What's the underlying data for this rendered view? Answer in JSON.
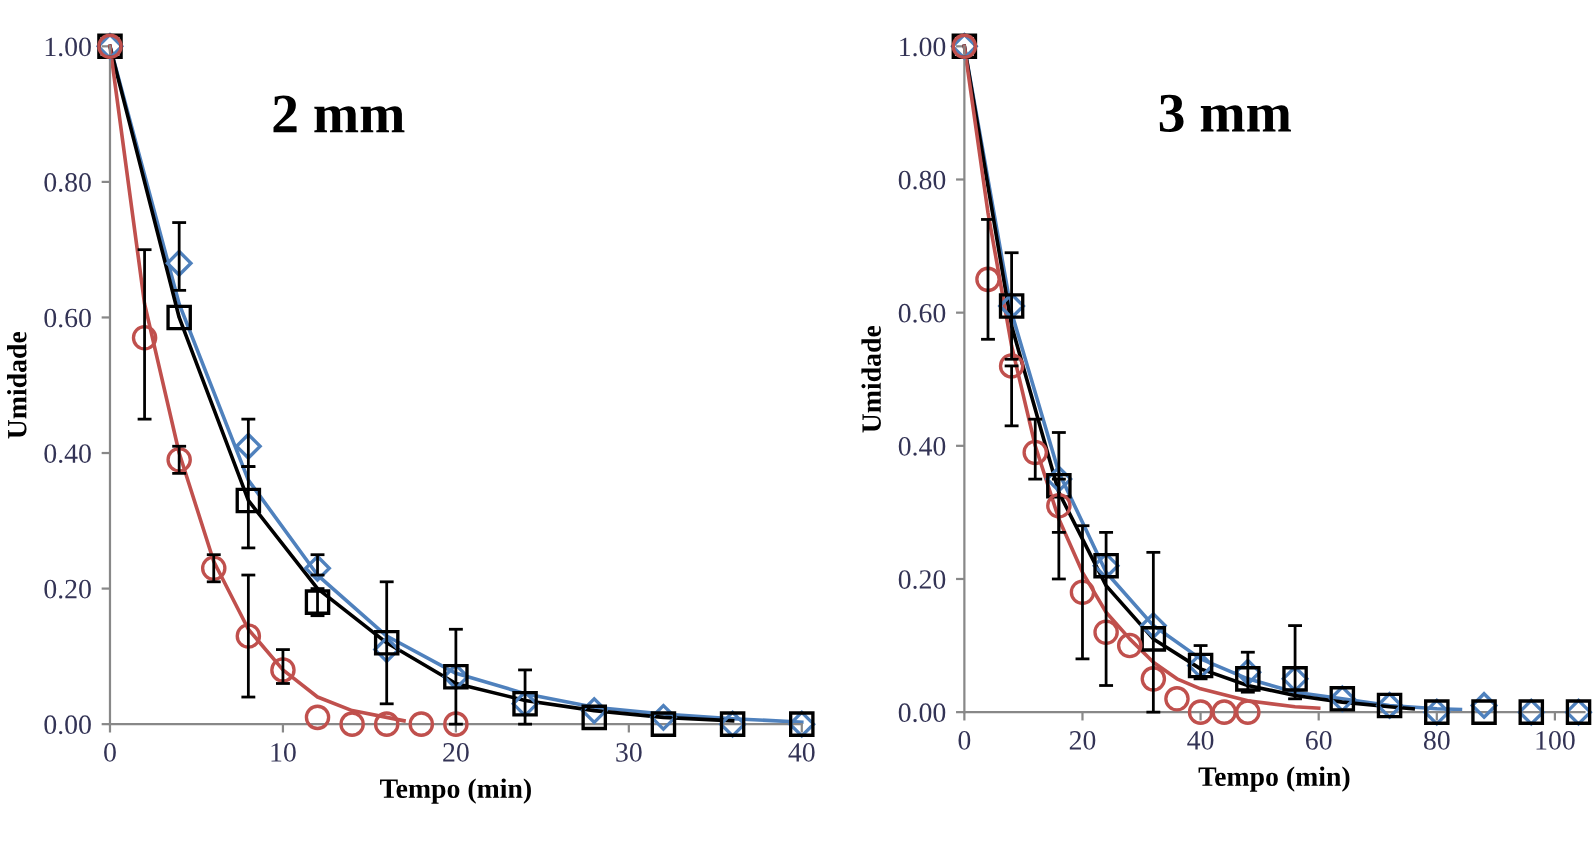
{
  "chart_data": [
    {
      "type": "scatter",
      "title": "2 mm",
      "xlabel": "Tempo (min)",
      "ylabel": "Umidade",
      "xlim": [
        0,
        40
      ],
      "xticks": [
        0,
        10,
        20,
        30,
        40
      ],
      "ylim": [
        0,
        1
      ],
      "yticks": [
        {
          "value": 0,
          "label": "0.00"
        },
        {
          "value": 0.2,
          "label": "0.20"
        },
        {
          "value": 0.4,
          "label": "0.40"
        },
        {
          "value": 0.6,
          "label": "0.60"
        },
        {
          "value": 0.8,
          "label": "0.80"
        },
        {
          "value": 1,
          "label": "1.00"
        }
      ],
      "grid": false,
      "legend": false,
      "series": [
        {
          "type": "line",
          "color": "#4f81bd",
          "marker": "none",
          "x": [
            0,
            4,
            8,
            12,
            16,
            20,
            24,
            28,
            32,
            36,
            40
          ],
          "values": [
            1.0,
            0.62,
            0.36,
            0.22,
            0.13,
            0.075,
            0.045,
            0.025,
            0.015,
            0.008,
            0.003
          ]
        },
        {
          "type": "line",
          "color": "#000000",
          "marker": "none",
          "x": [
            0,
            4,
            8,
            12,
            16,
            20,
            24,
            28,
            32,
            36
          ],
          "values": [
            1.0,
            0.6,
            0.33,
            0.2,
            0.12,
            0.06,
            0.035,
            0.02,
            0.01,
            0.005
          ]
        },
        {
          "type": "line",
          "color": "#c0504d",
          "marker": "none",
          "x": [
            0,
            2,
            4,
            6,
            8,
            10,
            12,
            14,
            16,
            17
          ],
          "values": [
            1.0,
            0.62,
            0.4,
            0.24,
            0.14,
            0.08,
            0.04,
            0.02,
            0.01,
            0.005
          ]
        },
        {
          "type": "scatter",
          "color": "#4f81bd",
          "marker": "diamond",
          "x": [
            0,
            4,
            8,
            12,
            16,
            20,
            24,
            28,
            32,
            36,
            40
          ],
          "values": [
            1.0,
            0.68,
            0.41,
            0.23,
            0.11,
            0.07,
            0.03,
            0.02,
            0.01,
            0.0,
            0.0
          ],
          "errors": [
            null,
            [
              0.64,
              0.74
            ],
            [
              0.38,
              0.45
            ],
            [
              0.22,
              0.25
            ],
            null,
            null,
            null,
            null,
            null,
            null,
            null
          ]
        },
        {
          "type": "scatter",
          "color": "#000000",
          "marker": "square",
          "x": [
            0,
            4,
            8,
            12,
            16,
            20,
            24,
            28,
            32,
            36,
            40
          ],
          "values": [
            1.0,
            0.6,
            0.33,
            0.18,
            0.12,
            0.07,
            0.03,
            0.01,
            0.0,
            0.0,
            0.0
          ],
          "errors": [
            null,
            null,
            [
              0.26,
              0.38
            ],
            [
              0.16,
              0.2
            ],
            [
              0.03,
              0.21
            ],
            [
              0.0,
              0.14
            ],
            [
              0.0,
              0.08
            ],
            null,
            null,
            null,
            null
          ]
        },
        {
          "type": "scatter",
          "color": "#c0504d",
          "marker": "circle",
          "x": [
            0,
            2,
            4,
            6,
            8,
            10,
            12,
            14,
            16,
            18,
            20
          ],
          "values": [
            1.0,
            0.57,
            0.39,
            0.23,
            0.13,
            0.08,
            0.01,
            0.0,
            0.0,
            0.0,
            0.0
          ],
          "errors": [
            null,
            [
              0.45,
              0.7
            ],
            [
              0.37,
              0.41
            ],
            [
              0.21,
              0.25
            ],
            [
              0.04,
              0.22
            ],
            [
              0.06,
              0.11
            ],
            null,
            null,
            null,
            null,
            null
          ]
        }
      ]
    },
    {
      "type": "scatter",
      "title": "3 mm",
      "xlabel": "Tempo (min)",
      "ylabel": "Umidade",
      "xlim": [
        0,
        105
      ],
      "xticks": [
        0,
        20,
        40,
        60,
        80,
        100
      ],
      "ylim": [
        0,
        1
      ],
      "yticks": [
        {
          "value": 0,
          "label": "0.00"
        },
        {
          "value": 0.2,
          "label": "0.20"
        },
        {
          "value": 0.4,
          "label": "0.40"
        },
        {
          "value": 0.6,
          "label": "0.60"
        },
        {
          "value": 0.8,
          "label": "0.80"
        },
        {
          "value": 1,
          "label": "1.00"
        }
      ],
      "grid": false,
      "legend": false,
      "series": [
        {
          "type": "line",
          "color": "#4f81bd",
          "marker": "none",
          "x": [
            0,
            8,
            16,
            24,
            32,
            40,
            48,
            56,
            64,
            72,
            80,
            84
          ],
          "values": [
            1.0,
            0.6,
            0.36,
            0.21,
            0.13,
            0.08,
            0.05,
            0.03,
            0.02,
            0.01,
            0.005,
            0.004
          ]
        },
        {
          "type": "line",
          "color": "#000000",
          "marker": "none",
          "x": [
            0,
            8,
            16,
            24,
            32,
            40,
            48,
            56,
            64,
            72,
            76
          ],
          "values": [
            1.0,
            0.58,
            0.33,
            0.19,
            0.11,
            0.065,
            0.04,
            0.025,
            0.015,
            0.008,
            0.005
          ]
        },
        {
          "type": "line",
          "color": "#c0504d",
          "marker": "none",
          "x": [
            0,
            4,
            8,
            12,
            16,
            20,
            24,
            28,
            32,
            36,
            40,
            48,
            56,
            60
          ],
          "values": [
            1.0,
            0.75,
            0.55,
            0.4,
            0.29,
            0.21,
            0.15,
            0.11,
            0.075,
            0.05,
            0.035,
            0.017,
            0.008,
            0.006
          ]
        },
        {
          "type": "scatter",
          "color": "#4f81bd",
          "marker": "diamond",
          "x": [
            0,
            8,
            16,
            24,
            32,
            40,
            48,
            56,
            64,
            72,
            80,
            88,
            96,
            104
          ],
          "values": [
            1.0,
            0.61,
            0.35,
            0.22,
            0.13,
            0.07,
            0.06,
            0.05,
            0.02,
            0.01,
            0.0,
            0.01,
            0.0,
            0.0
          ]
        },
        {
          "type": "scatter",
          "color": "#000000",
          "marker": "square",
          "x": [
            0,
            8,
            16,
            24,
            32,
            40,
            48,
            56,
            64,
            72,
            80,
            88,
            96,
            104
          ],
          "values": [
            1.0,
            0.61,
            0.34,
            0.22,
            0.11,
            0.07,
            0.05,
            0.05,
            0.02,
            0.01,
            0.0,
            0.0,
            0.0,
            0.0
          ],
          "errors": [
            null,
            [
              0.53,
              0.69
            ],
            [
              0.2,
              0.42
            ],
            [
              0.04,
              0.27
            ],
            [
              0.0,
              0.24
            ],
            [
              0.05,
              0.1
            ],
            [
              0.03,
              0.09
            ],
            [
              0.02,
              0.13
            ],
            null,
            null,
            null,
            null,
            null,
            null
          ]
        },
        {
          "type": "scatter",
          "color": "#c0504d",
          "marker": "circle",
          "x": [
            0,
            4,
            8,
            12,
            16,
            20,
            24,
            28,
            32,
            36,
            40,
            44,
            48
          ],
          "values": [
            1.0,
            0.65,
            0.52,
            0.39,
            0.31,
            0.18,
            0.12,
            0.1,
            0.05,
            0.02,
            0.0,
            0.0,
            0.0
          ],
          "errors": [
            null,
            [
              0.56,
              0.74
            ],
            [
              0.43,
              0.52
            ],
            [
              0.35,
              0.44
            ],
            [
              0.27,
              0.35
            ],
            [
              0.08,
              0.28
            ],
            null,
            null,
            null,
            null,
            null,
            null,
            null
          ]
        }
      ]
    }
  ]
}
